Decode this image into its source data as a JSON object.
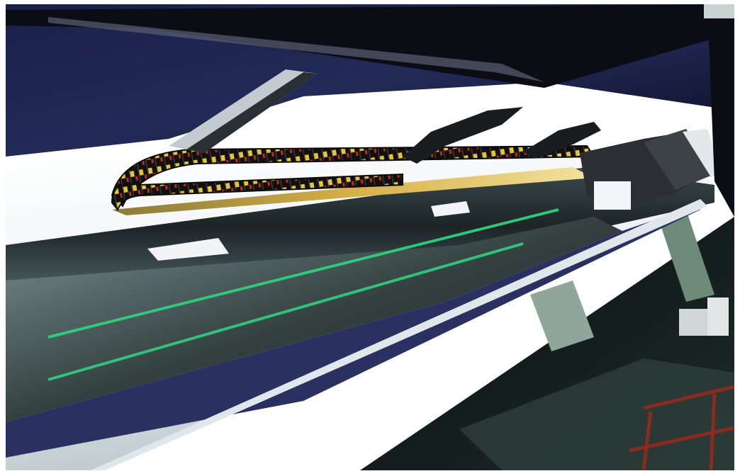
{
  "photo": {
    "subject": "linear-stage-cable-carrier",
    "colors": {
      "frame": "#ffffff",
      "backdrop_cloth": "#20264f",
      "rail_panel": "#e6ecee",
      "cable_chain": "#141414",
      "chain_yellow": "#e8c23a",
      "chain_red": "#c22a1c",
      "brass_strip": "#d6b047",
      "green_led": "#2fd07e",
      "floor_dark": "#0c1612",
      "rack_red": "#8a2b1f"
    }
  }
}
